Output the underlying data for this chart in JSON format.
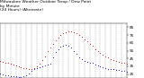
{
  "title_line1": "Milwaukee Weather Outdoor Temp / Dew Point",
  "title_line2": "by Minute",
  "title_line3": "(24 Hours) (Alternate)",
  "title_fontsize": 3.2,
  "background_color": "#ffffff",
  "plot_bg_color": "#ffffff",
  "grid_color": "#999999",
  "x_min": 0,
  "x_max": 1440,
  "y_min": 20,
  "y_max": 90,
  "y_ticks": [
    25,
    35,
    45,
    55,
    65,
    75,
    85
  ],
  "y_tick_fontsize": 3.0,
  "x_tick_fontsize": 2.5,
  "temp_color": "#cc0000",
  "dew_color": "#0000cc",
  "dot_size": 0.4,
  "temp_data": [
    [
      0,
      42
    ],
    [
      30,
      41
    ],
    [
      60,
      40
    ],
    [
      90,
      39
    ],
    [
      120,
      38
    ],
    [
      150,
      37
    ],
    [
      180,
      36
    ],
    [
      210,
      35
    ],
    [
      240,
      34
    ],
    [
      270,
      33
    ],
    [
      300,
      33
    ],
    [
      330,
      32
    ],
    [
      360,
      32
    ],
    [
      390,
      33
    ],
    [
      420,
      35
    ],
    [
      450,
      38
    ],
    [
      480,
      43
    ],
    [
      510,
      48
    ],
    [
      540,
      54
    ],
    [
      570,
      59
    ],
    [
      600,
      64
    ],
    [
      630,
      68
    ],
    [
      660,
      72
    ],
    [
      690,
      75
    ],
    [
      720,
      77
    ],
    [
      750,
      79
    ],
    [
      780,
      80
    ],
    [
      810,
      80
    ],
    [
      840,
      79
    ],
    [
      870,
      77
    ],
    [
      900,
      75
    ],
    [
      930,
      73
    ],
    [
      960,
      70
    ],
    [
      990,
      67
    ],
    [
      1020,
      64
    ],
    [
      1050,
      61
    ],
    [
      1080,
      57
    ],
    [
      1110,
      54
    ],
    [
      1140,
      52
    ],
    [
      1170,
      50
    ],
    [
      1200,
      48
    ],
    [
      1230,
      46
    ],
    [
      1260,
      44
    ],
    [
      1290,
      43
    ],
    [
      1320,
      42
    ],
    [
      1350,
      41
    ],
    [
      1380,
      40
    ],
    [
      1410,
      39
    ],
    [
      1440,
      38
    ]
  ],
  "dew_data": [
    [
      0,
      26
    ],
    [
      30,
      25
    ],
    [
      60,
      24
    ],
    [
      90,
      23
    ],
    [
      120,
      22
    ],
    [
      150,
      22
    ],
    [
      180,
      22
    ],
    [
      210,
      21
    ],
    [
      240,
      21
    ],
    [
      270,
      22
    ],
    [
      300,
      24
    ],
    [
      330,
      26
    ],
    [
      360,
      29
    ],
    [
      390,
      31
    ],
    [
      420,
      33
    ],
    [
      450,
      34
    ],
    [
      480,
      35
    ],
    [
      510,
      36
    ],
    [
      540,
      37
    ],
    [
      570,
      38
    ],
    [
      600,
      47
    ],
    [
      630,
      53
    ],
    [
      660,
      57
    ],
    [
      690,
      60
    ],
    [
      720,
      61
    ],
    [
      750,
      62
    ],
    [
      780,
      61
    ],
    [
      810,
      59
    ],
    [
      840,
      55
    ],
    [
      870,
      51
    ],
    [
      900,
      47
    ],
    [
      930,
      44
    ],
    [
      960,
      42
    ],
    [
      990,
      41
    ],
    [
      1020,
      40
    ],
    [
      1050,
      39
    ],
    [
      1080,
      37
    ],
    [
      1110,
      36
    ],
    [
      1140,
      35
    ],
    [
      1170,
      34
    ],
    [
      1200,
      33
    ],
    [
      1230,
      32
    ],
    [
      1260,
      32
    ],
    [
      1290,
      31
    ],
    [
      1320,
      30
    ],
    [
      1350,
      30
    ],
    [
      1380,
      29
    ],
    [
      1410,
      29
    ],
    [
      1440,
      28
    ]
  ],
  "x_tick_positions": [
    0,
    60,
    120,
    180,
    240,
    300,
    360,
    420,
    480,
    540,
    600,
    660,
    720,
    780,
    840,
    900,
    960,
    1020,
    1080,
    1140,
    1200,
    1260,
    1320,
    1380,
    1440
  ],
  "x_tick_labels": [
    "12a",
    "1",
    "2",
    "3",
    "4",
    "5",
    "6",
    "7",
    "8",
    "9",
    "10",
    "11",
    "12p",
    "1",
    "2",
    "3",
    "4",
    "5",
    "6",
    "7",
    "8",
    "9",
    "10",
    "11",
    "12a"
  ],
  "grid_positions": [
    60,
    120,
    180,
    240,
    300,
    360,
    420,
    480,
    540,
    600,
    660,
    720,
    780,
    840,
    900,
    960,
    1020,
    1080,
    1140,
    1200,
    1260,
    1320,
    1380
  ]
}
